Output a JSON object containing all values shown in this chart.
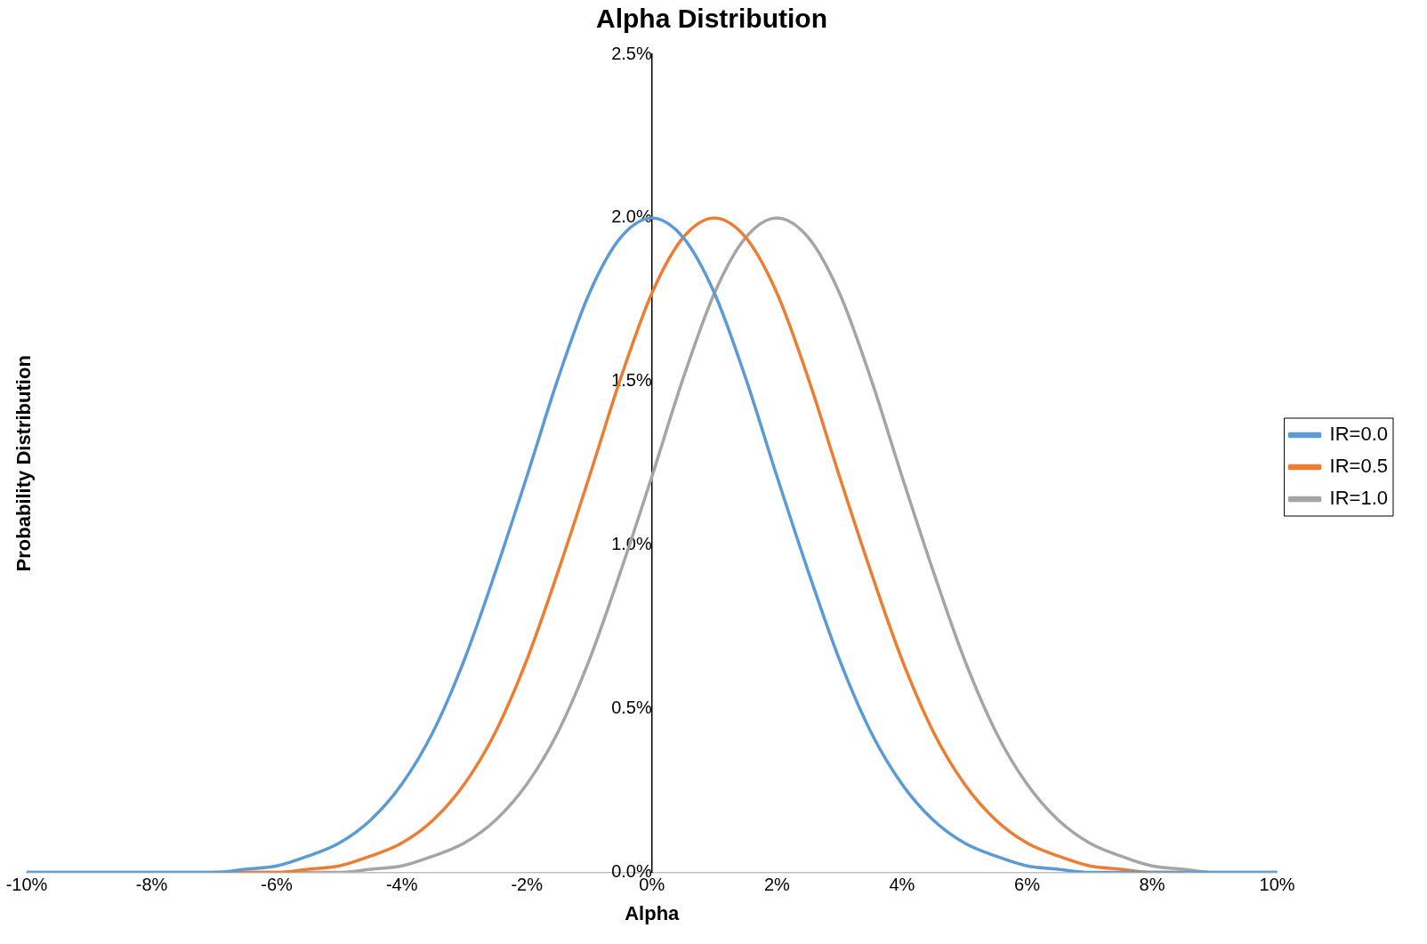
{
  "chart_data": {
    "type": "line",
    "title": "Alpha Distribution",
    "xlabel": "Alpha",
    "ylabel": "Probability Distribution",
    "x": [
      -10,
      -9.5,
      -9,
      -8.5,
      -8,
      -7.5,
      -7,
      -6.5,
      -6,
      -5.5,
      -5,
      -4.5,
      -4,
      -3.5,
      -3,
      -2.5,
      -2,
      -1.5,
      -1,
      -0.5,
      0,
      0.5,
      1,
      1.5,
      2,
      2.5,
      3,
      3.5,
      4,
      4.5,
      5,
      5.5,
      6,
      6.5,
      7,
      7.5,
      8,
      8.5,
      9,
      9.5,
      10
    ],
    "series": [
      {
        "name": "IR=0.0",
        "color": "#5b9bd5",
        "values": [
          0,
          0,
          0,
          0,
          0,
          0,
          0,
          0.01,
          0.02,
          0.05,
          0.09,
          0.16,
          0.27,
          0.43,
          0.65,
          0.92,
          1.21,
          1.51,
          1.77,
          1.94,
          2.0,
          1.94,
          1.77,
          1.51,
          1.21,
          0.92,
          0.65,
          0.43,
          0.27,
          0.16,
          0.09,
          0.05,
          0.02,
          0.01,
          0,
          0,
          0,
          0,
          0,
          0,
          0
        ]
      },
      {
        "name": "IR=0.5",
        "color": "#ed7d31",
        "values": [
          null,
          null,
          null,
          null,
          null,
          null,
          0,
          0,
          0,
          0.01,
          0.02,
          0.05,
          0.09,
          0.16,
          0.27,
          0.43,
          0.65,
          0.92,
          1.21,
          1.51,
          1.77,
          1.94,
          2.0,
          1.94,
          1.77,
          1.51,
          1.21,
          0.92,
          0.65,
          0.43,
          0.27,
          0.16,
          0.09,
          0.05,
          0.02,
          0.01,
          0,
          0,
          null,
          null,
          null
        ]
      },
      {
        "name": "IR=1.0",
        "color": "#a5a5a5",
        "values": [
          0,
          0,
          0,
          0,
          0,
          0,
          0,
          0,
          0,
          0,
          0,
          0.01,
          0.02,
          0.05,
          0.09,
          0.16,
          0.27,
          0.43,
          0.65,
          0.92,
          1.21,
          1.51,
          1.77,
          1.94,
          2.0,
          1.94,
          1.77,
          1.51,
          1.21,
          0.92,
          0.65,
          0.43,
          0.27,
          0.16,
          0.09,
          0.05,
          0.02,
          0.01,
          0,
          0,
          0
        ]
      }
    ],
    "xlim": [
      -10,
      10
    ],
    "ylim": [
      0,
      2.5
    ],
    "xticks": [
      {
        "value": -10,
        "label": "-10%"
      },
      {
        "value": -8,
        "label": "-8%"
      },
      {
        "value": -6,
        "label": "-6%"
      },
      {
        "value": -4,
        "label": "-4%"
      },
      {
        "value": -2,
        "label": "-2%"
      },
      {
        "value": 0,
        "label": "0%"
      },
      {
        "value": 2,
        "label": "2%"
      },
      {
        "value": 4,
        "label": "4%"
      },
      {
        "value": 6,
        "label": "6%"
      },
      {
        "value": 8,
        "label": "8%"
      },
      {
        "value": 10,
        "label": "10%"
      }
    ],
    "yticks": [
      {
        "value": 0,
        "label": "0.0%"
      },
      {
        "value": 0.5,
        "label": "0.5%"
      },
      {
        "value": 1,
        "label": "1.0%"
      },
      {
        "value": 1.5,
        "label": "1.5%"
      },
      {
        "value": 2,
        "label": "2.0%"
      },
      {
        "value": 2.5,
        "label": "2.5%"
      }
    ],
    "legend": "right",
    "marker": "none",
    "line_style": "solid"
  }
}
